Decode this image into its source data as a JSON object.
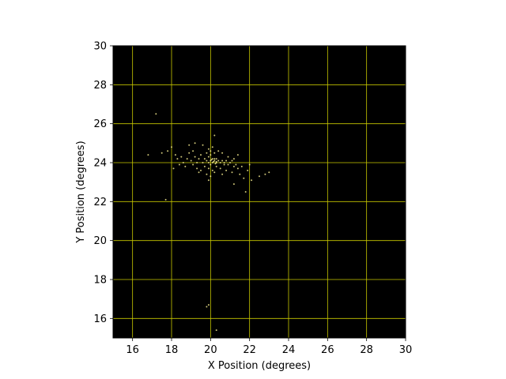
{
  "chart_data": {
    "type": "scatter",
    "title": "",
    "xlabel": "X Position (degrees)",
    "ylabel": "Y Position (degrees)",
    "xlim": [
      15,
      30
    ],
    "ylim": [
      15,
      30
    ],
    "xticks": [
      16,
      18,
      20,
      22,
      24,
      26,
      28,
      30
    ],
    "yticks": [
      16,
      18,
      20,
      22,
      24,
      26,
      28,
      30
    ],
    "xtick_labels": [
      "16",
      "18",
      "20",
      "22",
      "24",
      "26",
      "28",
      "30"
    ],
    "ytick_labels": [
      "16",
      "18",
      "20",
      "22",
      "24",
      "26",
      "28",
      "30"
    ],
    "grid": true,
    "grid_color": "#c8c800",
    "plot_background": "#000000",
    "point_color": "#f0e68c",
    "points": [
      [
        20.0,
        24.1
      ],
      [
        20.1,
        24.0
      ],
      [
        20.2,
        24.1
      ],
      [
        20.3,
        24.0
      ],
      [
        20.1,
        24.2
      ],
      [
        19.9,
        24.0
      ],
      [
        20.0,
        23.9
      ],
      [
        20.4,
        24.1
      ],
      [
        20.2,
        24.2
      ],
      [
        19.8,
        24.1
      ],
      [
        20.5,
        24.0
      ],
      [
        20.6,
        24.1
      ],
      [
        20.3,
        24.2
      ],
      [
        19.9,
        24.3
      ],
      [
        20.0,
        24.4
      ],
      [
        19.7,
        24.2
      ],
      [
        19.6,
        24.0
      ],
      [
        20.7,
        24.0
      ],
      [
        20.8,
        24.1
      ],
      [
        20.9,
        23.9
      ],
      [
        21.0,
        24.0
      ],
      [
        21.1,
        24.1
      ],
      [
        21.2,
        23.8
      ],
      [
        21.3,
        23.9
      ],
      [
        21.4,
        23.7
      ],
      [
        20.2,
        24.5
      ],
      [
        20.0,
        24.6
      ],
      [
        19.8,
        24.5
      ],
      [
        19.9,
        24.7
      ],
      [
        20.1,
        24.8
      ],
      [
        19.5,
        24.4
      ],
      [
        19.4,
        24.2
      ],
      [
        19.3,
        24.0
      ],
      [
        19.2,
        24.3
      ],
      [
        19.0,
        24.1
      ],
      [
        18.8,
        24.2
      ],
      [
        18.6,
        24.0
      ],
      [
        18.5,
        24.3
      ],
      [
        18.3,
        24.2
      ],
      [
        18.0,
        24.8
      ],
      [
        17.5,
        24.5
      ],
      [
        17.8,
        24.6
      ],
      [
        18.2,
        24.4
      ],
      [
        18.9,
        24.5
      ],
      [
        19.1,
        24.6
      ],
      [
        20.3,
        23.8
      ],
      [
        20.5,
        23.7
      ],
      [
        20.1,
        23.6
      ],
      [
        19.9,
        23.7
      ],
      [
        19.7,
        23.8
      ],
      [
        19.5,
        23.6
      ],
      [
        19.3,
        23.7
      ],
      [
        19.8,
        23.4
      ],
      [
        20.0,
        23.3
      ],
      [
        20.2,
        23.5
      ],
      [
        20.6,
        23.4
      ],
      [
        20.8,
        23.6
      ],
      [
        21.1,
        23.5
      ],
      [
        21.5,
        23.4
      ],
      [
        21.6,
        23.8
      ],
      [
        21.7,
        23.2
      ],
      [
        21.9,
        23.6
      ],
      [
        22.0,
        23.9
      ],
      [
        22.1,
        23.1
      ],
      [
        22.5,
        23.3
      ],
      [
        22.8,
        23.4
      ],
      [
        23.0,
        23.5
      ],
      [
        21.8,
        22.5
      ],
      [
        21.2,
        22.9
      ],
      [
        19.9,
        23.1
      ],
      [
        20.4,
        24.6
      ],
      [
        20.2,
        25.4
      ],
      [
        19.6,
        24.9
      ],
      [
        19.2,
        25.0
      ],
      [
        18.9,
        24.9
      ],
      [
        20.6,
        24.5
      ],
      [
        20.9,
        24.3
      ],
      [
        21.2,
        24.2
      ],
      [
        21.4,
        24.4
      ],
      [
        20.7,
        23.9
      ],
      [
        18.1,
        23.7
      ],
      [
        18.4,
        23.9
      ],
      [
        18.7,
        23.8
      ],
      [
        19.1,
        23.9
      ],
      [
        19.4,
        23.5
      ],
      [
        17.2,
        26.5
      ],
      [
        17.7,
        22.1
      ],
      [
        16.8,
        24.4
      ],
      [
        19.9,
        16.7
      ],
      [
        19.8,
        16.6
      ],
      [
        20.3,
        15.4
      ],
      [
        20.3,
        24.05
      ],
      [
        20.15,
        24.05
      ],
      [
        20.05,
        24.15
      ],
      [
        20.25,
        23.95
      ]
    ]
  }
}
